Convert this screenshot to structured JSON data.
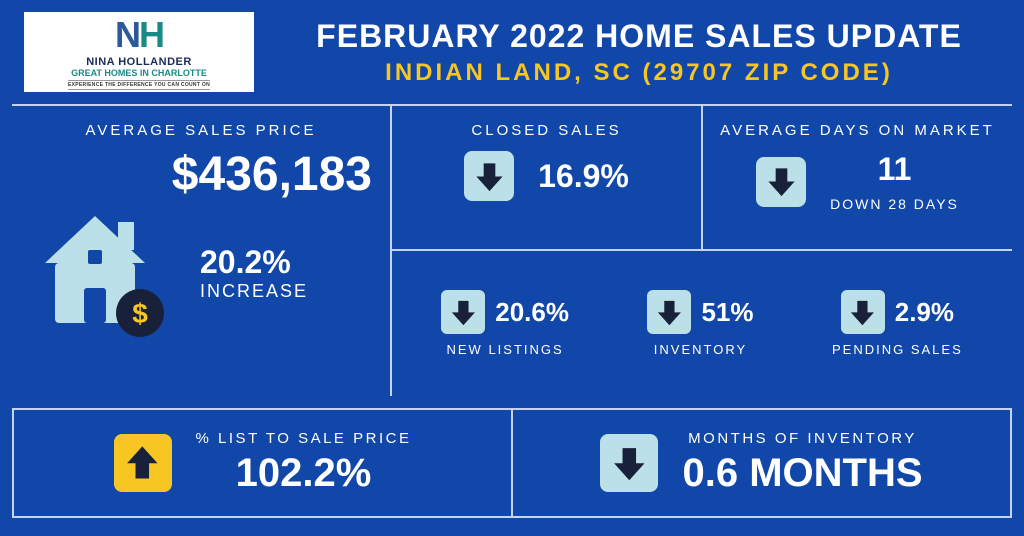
{
  "colors": {
    "bg": "#1147a8",
    "arrow_box_blue": "#bce0e8",
    "arrow_box_yellow": "#f7c623",
    "arrow_dark": "#19213a",
    "title_yellow": "#f7c623",
    "house_fill": "#bce0e8",
    "coin_fill": "#19213a",
    "coin_dollar": "#f7c623"
  },
  "header": {
    "title": "FEBRUARY 2022 HOME SALES UPDATE",
    "subtitle": "INDIAN LAND, SC (29707 ZIP CODE)",
    "logo_name": "NINA HOLLANDER",
    "logo_sub": "GREAT HOMES IN CHARLOTTE",
    "logo_tag": "EXPERIENCE THE DIFFERENCE YOU CAN COUNT ON"
  },
  "avg_price": {
    "label": "AVERAGE SALES PRICE",
    "value": "$436,183",
    "change_pct": "20.2%",
    "change_word": "INCREASE"
  },
  "closed_sales": {
    "label": "CLOSED SALES",
    "value": "16.9%",
    "direction": "down"
  },
  "dom": {
    "label": "AVERAGE DAYS ON MARKET",
    "value": "11",
    "sub": "DOWN 28 DAYS",
    "direction": "down"
  },
  "new_listings": {
    "label": "NEW LISTINGS",
    "value": "20.6%",
    "direction": "down"
  },
  "inventory": {
    "label": "INVENTORY",
    "value": "51%",
    "direction": "down"
  },
  "pending": {
    "label": "PENDING SALES",
    "value": "2.9%",
    "direction": "down"
  },
  "list_to_sale": {
    "label": "% LIST TO SALE PRICE",
    "value": "102.2%",
    "direction": "up"
  },
  "moi": {
    "label": "MONTHS OF INVENTORY",
    "value": "0.6 MONTHS",
    "direction": "down"
  }
}
